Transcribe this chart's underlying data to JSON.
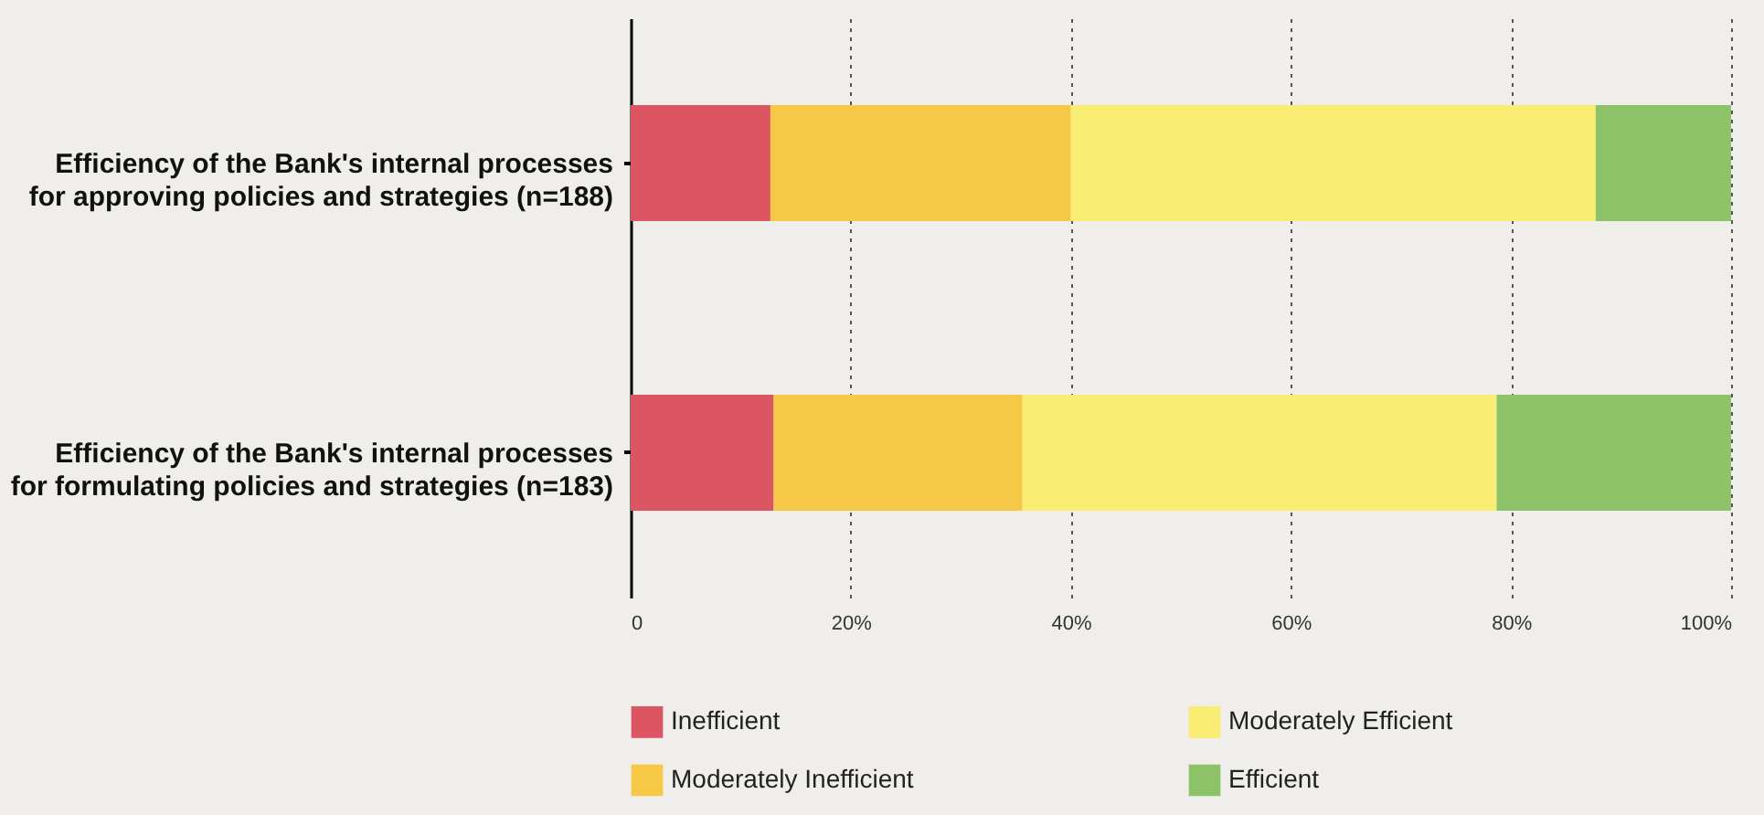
{
  "chart_data": {
    "type": "bar",
    "orientation": "horizontal",
    "stacked": true,
    "categories": [
      "Efficiency of the Bank's internal processes for approving policies and strategies (n=188)",
      "Efficiency of the Bank's internal processes for formulating policies and strategies (n=183)"
    ],
    "series": [
      {
        "name": "Inefficient",
        "color": "#dc5562",
        "values": [
          12.7,
          13.0
        ]
      },
      {
        "name": "Moderately Inefficient",
        "color": "#f7c846",
        "values": [
          27.3,
          22.6
        ]
      },
      {
        "name": "Moderately Efficient",
        "color": "#f9ed73",
        "values": [
          47.7,
          43.1
        ]
      },
      {
        "name": "Efficient",
        "color": "#8dc268",
        "values": [
          12.3,
          21.3
        ]
      }
    ],
    "xlim": [
      0,
      100
    ],
    "xticks": [
      0,
      {
        "value": 20,
        "label": "20%"
      },
      {
        "value": 40,
        "label": "40%"
      },
      {
        "value": 60,
        "label": "60%"
      },
      {
        "value": 80,
        "label": "80%"
      },
      {
        "value": 100,
        "label": "100%"
      }
    ],
    "grid": "x",
    "legend": "bottom"
  }
}
